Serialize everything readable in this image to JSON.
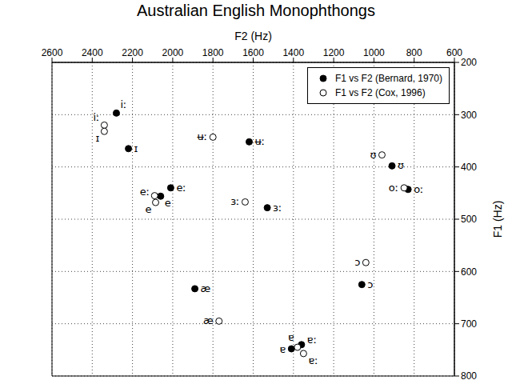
{
  "chart_data": {
    "type": "scatter",
    "title": "Australian English Monophthongs",
    "x_label": "F2 (Hz)",
    "y_label": "F1 (Hz)",
    "xlim": [
      2600,
      600
    ],
    "xticks": [
      2600,
      2400,
      2200,
      2000,
      1800,
      1600,
      1400,
      1200,
      1000,
      800,
      600
    ],
    "ylim": [
      800,
      200
    ],
    "yticks": [
      200,
      300,
      400,
      500,
      600,
      700,
      800
    ],
    "grid": true,
    "legend": "upper right",
    "series": [
      {
        "name": "F1 vs F2 (Bernard, 1970)",
        "color": "#000000",
        "marker": "circle",
        "labels": [
          "iː",
          "ɪ",
          "eː",
          "e",
          "ʉː",
          "ɜː",
          "æ",
          "ɐ",
          "ɐː",
          "ʊ",
          "oː",
          "ɔ"
        ],
        "x": [
          2280,
          2220,
          2010,
          2060,
          1620,
          1530,
          1890,
          1410,
          1360,
          910,
          830,
          1060
        ],
        "values": [
          297,
          365,
          440,
          456,
          352,
          478,
          633,
          748,
          740,
          398,
          443,
          625
        ]
      },
      {
        "name": "F1 vs F2 (Cox, 1996)",
        "color": "#000000",
        "marker": "open_circle",
        "labels": [
          "iː",
          "ɪ",
          "eː",
          "e",
          "ʉː",
          "ɜː",
          "æ",
          "ɐ",
          "ɐː",
          "ʊ",
          "oː",
          "ɔ"
        ],
        "x": [
          2340,
          2340,
          2090,
          2085,
          1800,
          1640,
          1770,
          1380,
          1350,
          960,
          850,
          1040
        ],
        "values": [
          320,
          332,
          455,
          468,
          343,
          467,
          695,
          745,
          757,
          377,
          440,
          583
        ]
      }
    ]
  }
}
